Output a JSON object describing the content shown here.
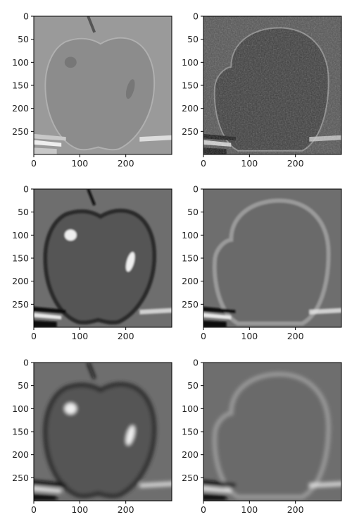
{
  "chart_data": [
    {
      "type": "heatmap",
      "colormap": "gray",
      "description": "image panel",
      "row": 0,
      "col": 0,
      "variant": "high-pass",
      "xlim": [
        0,
        300
      ],
      "ylim": [
        300,
        0
      ],
      "xticks": [
        0,
        100,
        200
      ],
      "yticks": [
        0,
        50,
        100,
        150,
        200,
        250
      ],
      "title": "",
      "xlabel": "",
      "ylabel": ""
    },
    {
      "type": "heatmap",
      "colormap": "gray",
      "description": "image panel",
      "row": 0,
      "col": 1,
      "variant": "high-pass",
      "xlim": [
        0,
        300
      ],
      "ylim": [
        300,
        0
      ],
      "xticks": [
        0,
        100,
        200
      ],
      "yticks": [
        0,
        50,
        100,
        150,
        200,
        250
      ],
      "title": "",
      "xlabel": "",
      "ylabel": ""
    },
    {
      "type": "heatmap",
      "colormap": "gray",
      "description": "image panel",
      "row": 1,
      "col": 0,
      "variant": "band-pass",
      "xlim": [
        0,
        300
      ],
      "ylim": [
        300,
        0
      ],
      "xticks": [
        0,
        100,
        200
      ],
      "yticks": [
        0,
        50,
        100,
        150,
        200,
        250
      ],
      "title": "",
      "xlabel": "",
      "ylabel": ""
    },
    {
      "type": "heatmap",
      "colormap": "gray",
      "description": "image panel",
      "row": 1,
      "col": 1,
      "variant": "band-pass",
      "xlim": [
        0,
        300
      ],
      "ylim": [
        300,
        0
      ],
      "xticks": [
        0,
        100,
        200
      ],
      "yticks": [
        0,
        50,
        100,
        150,
        200,
        250
      ],
      "title": "",
      "xlabel": "",
      "ylabel": ""
    },
    {
      "type": "heatmap",
      "colormap": "gray",
      "description": "image panel",
      "row": 2,
      "col": 0,
      "variant": "smooth",
      "xlim": [
        0,
        300
      ],
      "ylim": [
        300,
        0
      ],
      "xticks": [
        0,
        100,
        200
      ],
      "yticks": [
        0,
        50,
        100,
        150,
        200,
        250
      ],
      "title": "",
      "xlabel": "",
      "ylabel": ""
    },
    {
      "type": "heatmap",
      "colormap": "gray",
      "description": "image panel",
      "row": 2,
      "col": 1,
      "variant": "smooth",
      "xlim": [
        0,
        300
      ],
      "ylim": [
        300,
        0
      ],
      "xticks": [
        0,
        100,
        200
      ],
      "yticks": [
        0,
        50,
        100,
        150,
        200,
        250
      ],
      "title": "",
      "xlabel": "",
      "ylabel": ""
    }
  ]
}
